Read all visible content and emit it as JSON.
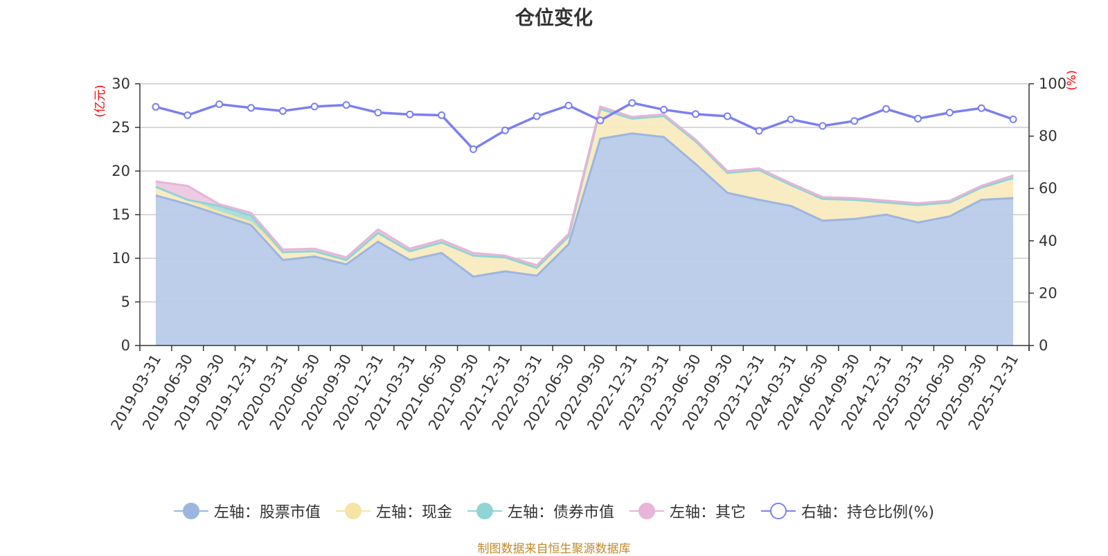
{
  "chart_data": {
    "type": "area",
    "title": "仓位变化",
    "left_axis": {
      "unit": "(亿元)",
      "range": [
        0,
        30
      ],
      "ticks": [
        0,
        5,
        10,
        15,
        20,
        25,
        30
      ]
    },
    "right_axis": {
      "unit": "(%)",
      "range": [
        0,
        100
      ],
      "ticks": [
        0,
        20,
        40,
        60,
        80,
        100
      ]
    },
    "categories": [
      "2019-03-31",
      "2019-06-30",
      "2019-09-30",
      "2019-12-31",
      "2020-03-31",
      "2020-06-30",
      "2020-09-30",
      "2020-12-31",
      "2021-03-31",
      "2021-06-30",
      "2021-09-30",
      "2021-12-31",
      "2022-03-31",
      "2022-06-30",
      "2022-09-30",
      "2022-12-31",
      "2023-03-31",
      "2023-06-30",
      "2023-09-30",
      "2023-12-31",
      "2024-03-31",
      "2024-06-30",
      "2024-09-30",
      "2024-12-31",
      "2025-03-31",
      "2025-06-30",
      "2025-09-30",
      "2025-12-31"
    ],
    "series": [
      {
        "name": "左轴：股票市值",
        "axis": "left",
        "color": "#9cb6e0",
        "fill": "#b8cbe9",
        "values": [
          17.2,
          16.2,
          15.0,
          13.8,
          9.8,
          10.2,
          9.3,
          11.9,
          9.8,
          10.6,
          7.9,
          8.5,
          8.0,
          11.6,
          23.7,
          24.3,
          23.9,
          20.8,
          17.5,
          16.7,
          16.0,
          14.3,
          14.5,
          15.0,
          14.1,
          14.8,
          16.7,
          16.9
        ]
      },
      {
        "name": "左轴：现金",
        "axis": "left",
        "color": "#f6e4a4",
        "fill": "#f9eabf",
        "values": [
          1.0,
          0.5,
          0.3,
          0.3,
          0.9,
          0.6,
          0.5,
          1.0,
          1.0,
          1.2,
          2.4,
          1.6,
          0.9,
          0.9,
          3.4,
          1.7,
          2.4,
          2.6,
          2.2,
          3.4,
          2.4,
          2.5,
          2.2,
          1.4,
          2.0,
          1.6,
          1.4,
          2.3
        ]
      },
      {
        "name": "左轴：债券市值",
        "axis": "left",
        "color": "#90d4d4",
        "fill": "#a8dcdc",
        "values": [
          0,
          0,
          0.7,
          0.8,
          0,
          0,
          0,
          0,
          0,
          0,
          0,
          0,
          0,
          0,
          0,
          0,
          0,
          0,
          0.1,
          0,
          0,
          0,
          0,
          0,
          0,
          0,
          0,
          0
        ]
      },
      {
        "name": "左轴：其它",
        "axis": "left",
        "color": "#e8b4d8",
        "fill": "#edc8e0",
        "values": [
          0.6,
          1.6,
          0.2,
          0.3,
          0.3,
          0.3,
          0.3,
          0.4,
          0.3,
          0.3,
          0.3,
          0.2,
          0.3,
          0.3,
          0.3,
          0.2,
          0.2,
          0.2,
          0.2,
          0.2,
          0.2,
          0.2,
          0.2,
          0.2,
          0.2,
          0.2,
          0.2,
          0.3
        ]
      },
      {
        "name": "右轴：持仓比例(%)",
        "axis": "right",
        "color": "#7b7ff0",
        "values": [
          91.2,
          88.0,
          92.2,
          90.8,
          89.6,
          91.3,
          91.9,
          89.0,
          88.3,
          88.0,
          75.0,
          82.2,
          87.6,
          91.7,
          86.0,
          92.7,
          90.1,
          88.4,
          87.6,
          82.0,
          86.4,
          83.9,
          85.8,
          90.4,
          86.7,
          89.0,
          90.7,
          86.4
        ]
      }
    ]
  },
  "source_note": "制图数据来自恒生聚源数据库"
}
